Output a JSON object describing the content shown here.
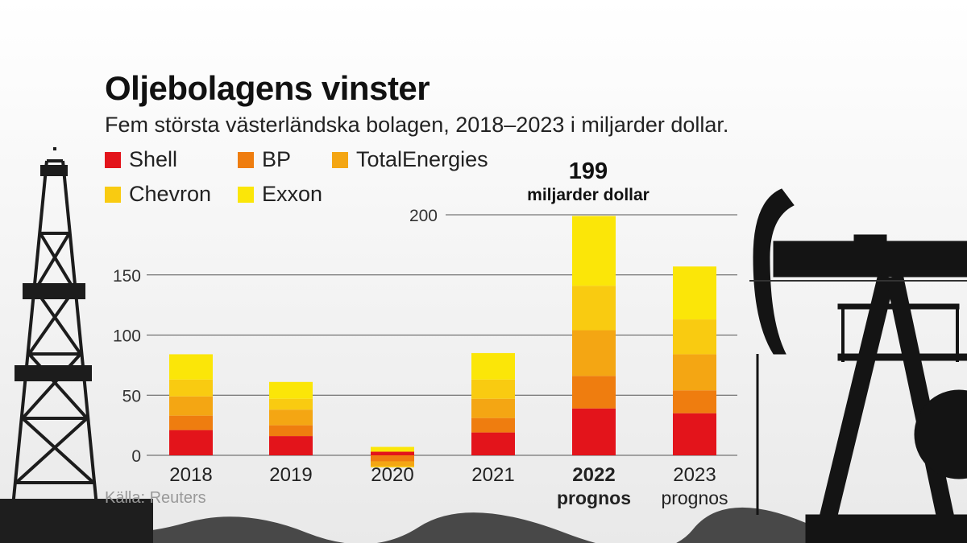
{
  "title": "Oljebolagens vinster",
  "subtitle": "Fem största västerländska bolagen, 2018–2023 i miljarder dollar.",
  "legend": [
    {
      "label": "Shell",
      "color": "#e3141b"
    },
    {
      "label": "BP",
      "color": "#ef7d0f"
    },
    {
      "label": "TotalEnergies",
      "color": "#f4a613"
    },
    {
      "label": "Chevron",
      "color": "#f9cb11"
    },
    {
      "label": "Exxon",
      "color": "#fbe608"
    }
  ],
  "highlight": {
    "value": "199",
    "unit": "miljarder dollar"
  },
  "source": "Källa: Reuters",
  "chart_data": {
    "type": "bar",
    "stacked": true,
    "categories": [
      "2018",
      "2019",
      "2020",
      "2021",
      "2022",
      "2023"
    ],
    "category_sublabels": [
      "",
      "",
      "",
      "",
      "prognos",
      "prognos"
    ],
    "bold_category": "2022",
    "ylim": [
      0,
      200
    ],
    "yticks": [
      0,
      50,
      100,
      150,
      200
    ],
    "grid": true,
    "legend_position": "top-left",
    "series": [
      {
        "name": "Shell",
        "color": "#e3141b",
        "values": [
          21,
          16,
          3,
          19,
          39,
          35
        ]
      },
      {
        "name": "BP",
        "color": "#ef7d0f",
        "values": [
          12,
          9,
          -5,
          12,
          27,
          19
        ]
      },
      {
        "name": "TotalEnergies",
        "color": "#f4a613",
        "values": [
          16,
          13,
          -4,
          16,
          38,
          30
        ]
      },
      {
        "name": "Chevron",
        "color": "#f9cb11",
        "values": [
          14,
          9,
          -1,
          16,
          37,
          29
        ]
      },
      {
        "name": "Exxon",
        "color": "#fbe608",
        "values": [
          21,
          14,
          4,
          22,
          58,
          44
        ]
      }
    ]
  }
}
